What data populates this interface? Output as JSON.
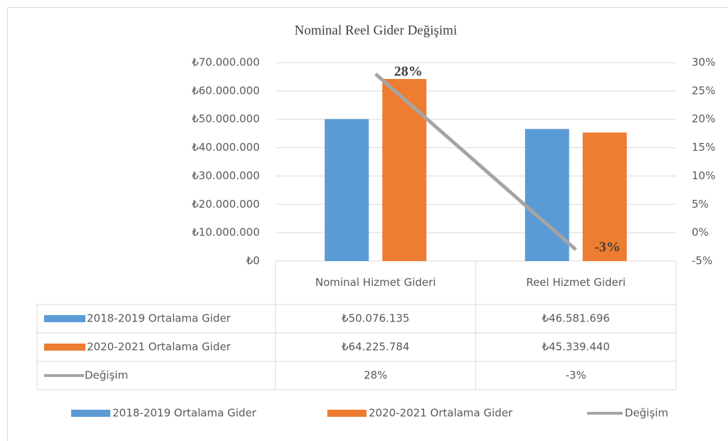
{
  "chart_data": {
    "type": "bar",
    "title": "Nominal Reel Gider Değişimi",
    "categories": [
      "Nominal Hizmet Gideri",
      "Reel Hizmet Gideri"
    ],
    "series": [
      {
        "name": "2018-2019 Ortalama Gider",
        "type": "bar",
        "color": "#5b9bd5",
        "values": [
          50076135,
          46581696
        ],
        "value_labels": [
          "₺50.076.135",
          "₺46.581.696"
        ]
      },
      {
        "name": "2020-2021 Ortalama Gider",
        "type": "bar",
        "color": "#ed7d31",
        "values": [
          64225784,
          45339440
        ],
        "value_labels": [
          "₺64.225.784",
          "₺45.339.440"
        ]
      },
      {
        "name": "Değişim",
        "type": "line",
        "axis": "y2",
        "color": "#a5a5a5",
        "values": [
          28,
          -3
        ],
        "value_labels": [
          "28%",
          "-3%"
        ]
      }
    ],
    "ylim": [
      0,
      70000000
    ],
    "yticks": [
      {
        "value": 0,
        "label": "₺0"
      },
      {
        "value": 10000000,
        "label": "₺10.000.000"
      },
      {
        "value": 20000000,
        "label": "₺20.000.000"
      },
      {
        "value": 30000000,
        "label": "₺30.000.000"
      },
      {
        "value": 40000000,
        "label": "₺40.000.000"
      },
      {
        "value": 50000000,
        "label": "₺50.000.000"
      },
      {
        "value": 60000000,
        "label": "₺60.000.000"
      },
      {
        "value": 70000000,
        "label": "₺70.000.000"
      }
    ],
    "y2lim": [
      -5,
      30
    ],
    "y2ticks": [
      {
        "value": -5,
        "label": "-5%"
      },
      {
        "value": 0,
        "label": "0%"
      },
      {
        "value": 5,
        "label": "5%"
      },
      {
        "value": 10,
        "label": "10%"
      },
      {
        "value": 15,
        "label": "15%"
      },
      {
        "value": 20,
        "label": "20%"
      },
      {
        "value": 25,
        "label": "25%"
      },
      {
        "value": 30,
        "label": "30%"
      }
    ],
    "grid": true,
    "legend": "bottom"
  }
}
